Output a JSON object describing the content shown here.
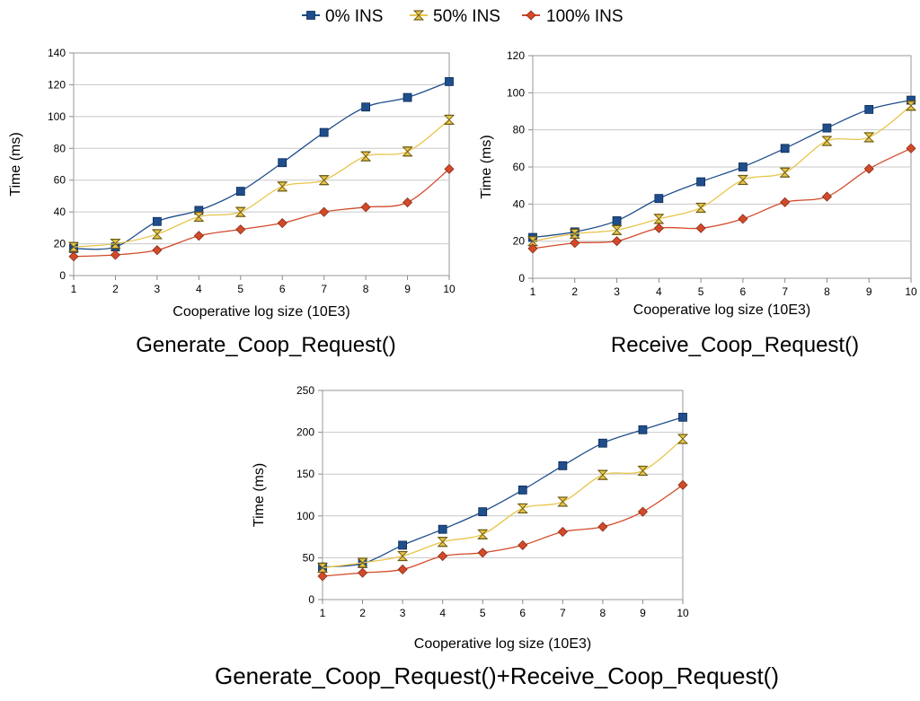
{
  "legend": {
    "placement": "top-center",
    "entries": [
      {
        "label": "0% INS",
        "color": "#1f4e8c",
        "marker": "square"
      },
      {
        "label": "50% INS",
        "color": "#e8c44a",
        "marker": "hourglass"
      },
      {
        "label": "100% INS",
        "color": "#d24a2a",
        "marker": "diamond"
      }
    ]
  },
  "chart_data": [
    {
      "type": "line",
      "title": "Generate_Coop_Request()",
      "xlabel": "Cooperative log size (10E3)",
      "ylabel": "Time (ms)",
      "x": [
        1,
        2,
        3,
        4,
        5,
        6,
        7,
        8,
        9,
        10
      ],
      "ylim": [
        0,
        140
      ],
      "yticks": [
        0,
        20,
        40,
        60,
        80,
        100,
        120,
        140
      ],
      "grid": true,
      "series": [
        {
          "name": "0% INS",
          "values": [
            17,
            18,
            34,
            41,
            53,
            71,
            90,
            106,
            112,
            122
          ]
        },
        {
          "name": "50% INS",
          "values": [
            18,
            20,
            26,
            37,
            40,
            56,
            60,
            75,
            78,
            98
          ]
        },
        {
          "name": "100% INS",
          "values": [
            12,
            13,
            16,
            25,
            29,
            33,
            40,
            43,
            46,
            67
          ]
        }
      ]
    },
    {
      "type": "line",
      "title": "Receive_Coop_Request()",
      "xlabel": "Cooperative log size (10E3)",
      "ylabel": "Time (ms)",
      "x": [
        1,
        2,
        3,
        4,
        5,
        6,
        7,
        8,
        9,
        10
      ],
      "ylim": [
        0,
        120
      ],
      "yticks": [
        0,
        20,
        40,
        60,
        80,
        100,
        120
      ],
      "grid": true,
      "series": [
        {
          "name": "0% INS",
          "values": [
            22,
            25,
            31,
            43,
            52,
            60,
            70,
            81,
            91,
            96
          ]
        },
        {
          "name": "50% INS",
          "values": [
            20,
            24,
            26,
            32,
            38,
            53,
            57,
            74,
            76,
            93
          ]
        },
        {
          "name": "100% INS",
          "values": [
            16,
            19,
            20,
            27,
            27,
            32,
            41,
            44,
            59,
            70
          ]
        }
      ]
    },
    {
      "type": "line",
      "title": "Generate_Coop_Request()+Receive_Coop_Request()",
      "xlabel": "Cooperative log size (10E3)",
      "ylabel": "Time (ms)",
      "x": [
        1,
        2,
        3,
        4,
        5,
        6,
        7,
        8,
        9,
        10
      ],
      "ylim": [
        0,
        250
      ],
      "yticks": [
        0,
        50,
        100,
        150,
        200,
        250
      ],
      "grid": true,
      "series": [
        {
          "name": "0% INS",
          "values": [
            39,
            43,
            65,
            84,
            105,
            131,
            160,
            187,
            203,
            218
          ]
        },
        {
          "name": "50% INS",
          "values": [
            38,
            44,
            52,
            69,
            78,
            109,
            117,
            149,
            154,
            192
          ]
        },
        {
          "name": "100% INS",
          "values": [
            28,
            32,
            36,
            52,
            56,
            65,
            81,
            87,
            105,
            137
          ]
        }
      ]
    }
  ]
}
